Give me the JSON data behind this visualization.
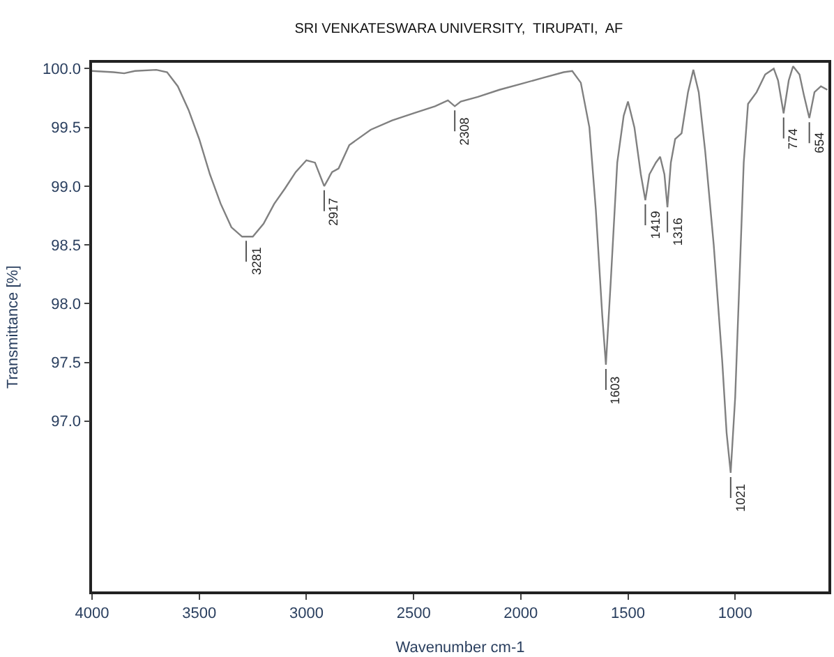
{
  "chart_data": {
    "type": "line",
    "title": "SRI VENKATESWARA UNIVERSITY,  TIRUPATI,  AF",
    "xlabel": "Wavenumber cm-1",
    "ylabel": "Transmittance [%]",
    "x": [
      4000,
      3900,
      3850,
      3800,
      3700,
      3650,
      3600,
      3550,
      3500,
      3450,
      3400,
      3350,
      3300,
      3281,
      3250,
      3200,
      3150,
      3100,
      3050,
      3000,
      2960,
      2917,
      2880,
      2850,
      2800,
      2700,
      2600,
      2500,
      2400,
      2340,
      2308,
      2280,
      2200,
      2100,
      2000,
      1900,
      1800,
      1760,
      1720,
      1680,
      1650,
      1620,
      1603,
      1580,
      1550,
      1520,
      1500,
      1470,
      1440,
      1419,
      1400,
      1370,
      1350,
      1330,
      1316,
      1300,
      1280,
      1250,
      1220,
      1195,
      1170,
      1140,
      1100,
      1060,
      1040,
      1021,
      1000,
      980,
      960,
      940,
      900,
      860,
      820,
      800,
      774,
      750,
      730,
      700,
      680,
      654,
      630,
      600,
      570
    ],
    "series": [
      {
        "color": "#808080",
        "values": [
          99.98,
          99.97,
          99.96,
          99.98,
          99.99,
          99.97,
          99.85,
          99.65,
          99.4,
          99.1,
          98.85,
          98.65,
          98.57,
          98.57,
          98.57,
          98.68,
          98.85,
          98.98,
          99.12,
          99.22,
          99.2,
          99.0,
          99.12,
          99.15,
          99.35,
          99.48,
          99.56,
          99.62,
          99.68,
          99.73,
          99.68,
          99.72,
          99.76,
          99.82,
          99.87,
          99.92,
          99.97,
          99.98,
          99.88,
          99.5,
          98.8,
          97.9,
          97.48,
          98.2,
          99.2,
          99.6,
          99.72,
          99.5,
          99.1,
          98.88,
          99.1,
          99.2,
          99.25,
          99.1,
          98.82,
          99.2,
          99.4,
          99.45,
          99.8,
          99.99,
          99.8,
          99.3,
          98.5,
          97.5,
          96.9,
          96.56,
          97.2,
          98.2,
          99.2,
          99.7,
          99.8,
          99.95,
          100.0,
          99.9,
          99.62,
          99.9,
          100.02,
          99.95,
          99.78,
          99.58,
          99.8,
          99.85,
          99.82
        ]
      }
    ],
    "annotations": [
      {
        "text": "3281",
        "x": 3281,
        "y": 98.57
      },
      {
        "text": "2917",
        "x": 2917,
        "y": 99.0
      },
      {
        "text": "2308",
        "x": 2308,
        "y": 99.68
      },
      {
        "text": "1603",
        "x": 1603,
        "y": 97.48
      },
      {
        "text": "1419",
        "x": 1419,
        "y": 98.88
      },
      {
        "text": "1316",
        "x": 1316,
        "y": 98.82
      },
      {
        "text": "1021",
        "x": 1021,
        "y": 96.56
      },
      {
        "text": "774",
        "x": 774,
        "y": 99.62
      },
      {
        "text": "654",
        "x": 654,
        "y": 99.58
      }
    ],
    "xlim": [
      4000,
      565
    ],
    "ylim": [
      95.55,
      100.05
    ],
    "xticks": [
      4000,
      3500,
      3000,
      2500,
      2000,
      1500,
      1000
    ],
    "yticks": [
      {
        "value": 97.0,
        "label": "97.0"
      },
      {
        "value": 97.5,
        "label": "97.5"
      },
      {
        "value": 98.0,
        "label": "98.0"
      },
      {
        "value": 98.5,
        "label": "98.5"
      },
      {
        "value": 99.0,
        "label": "99.0"
      },
      {
        "value": 99.5,
        "label": "99.5"
      },
      {
        "value": 100.0,
        "label": "100.0"
      }
    ],
    "marker": "none",
    "line_style": "solid"
  }
}
